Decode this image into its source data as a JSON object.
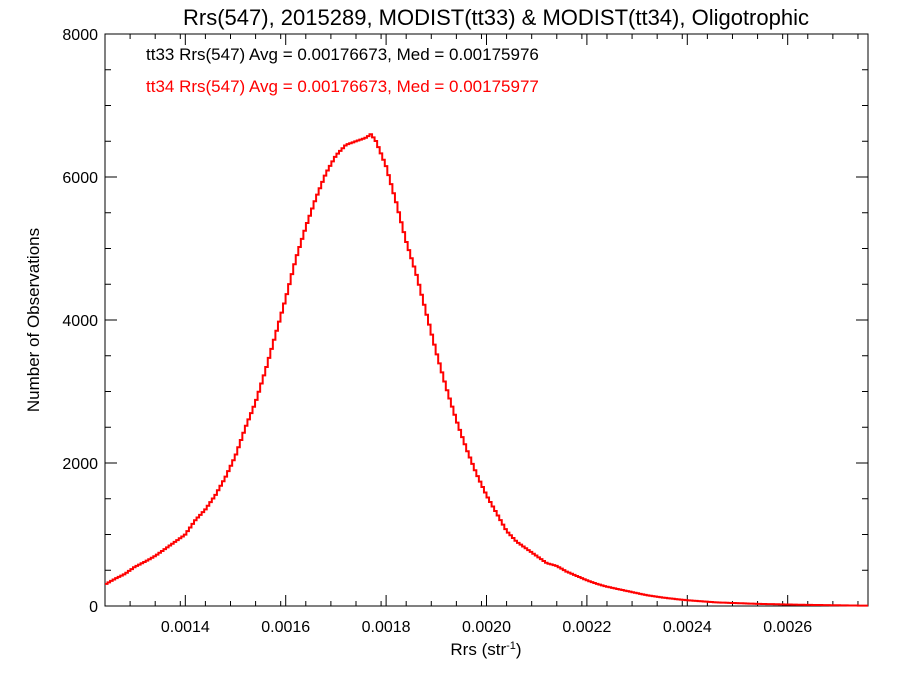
{
  "chart_data": {
    "type": "line",
    "title": "Rrs(547), 2015289, MODIST(tt33) & MODIST(tt34), Oligotrophic",
    "xlabel": "Rrs (str",
    "xlabel_sup": "-1",
    "xlabel_close": ")",
    "ylabel": "Number of Observations",
    "xlim": [
      0.00124,
      0.00276
    ],
    "ylim": [
      0,
      8000
    ],
    "xticks": [
      0.0014,
      0.0016,
      0.0018,
      0.002,
      0.0022,
      0.0024,
      0.0026
    ],
    "xtick_labels": [
      "0.0014",
      "0.0016",
      "0.0018",
      "0.0020",
      "0.0022",
      "0.0024",
      "0.0026"
    ],
    "yticks": [
      0,
      2000,
      4000,
      6000,
      8000
    ],
    "ytick_labels": [
      "0",
      "2000",
      "4000",
      "6000",
      "8000"
    ],
    "x_minor_step": 5e-05,
    "y_minor_step": 500,
    "grid": false,
    "annotations": [
      {
        "text": "tt33 Rrs(547) Avg = 0.00176673, Med = 0.00175976",
        "color": "#000000"
      },
      {
        "text": "tt34 Rrs(547) Avg = 0.00176673, Med = 0.00175977",
        "color": "#ff0000"
      }
    ],
    "series": [
      {
        "color": "#ff0000",
        "step": true,
        "x": [
          0.00124,
          0.00126,
          0.00128,
          0.0013,
          0.00132,
          0.00134,
          0.00136,
          0.00138,
          0.0014,
          0.00142,
          0.00144,
          0.00146,
          0.00148,
          0.0015,
          0.00152,
          0.00154,
          0.00156,
          0.00158,
          0.0016,
          0.00162,
          0.00164,
          0.00166,
          0.00168,
          0.0017,
          0.00172,
          0.00174,
          0.00176,
          0.00177,
          0.00178,
          0.0018,
          0.00182,
          0.00184,
          0.00186,
          0.00188,
          0.0019,
          0.00192,
          0.00194,
          0.00196,
          0.00198,
          0.002,
          0.00202,
          0.00204,
          0.00206,
          0.00208,
          0.0021,
          0.00212,
          0.00214,
          0.00216,
          0.00218,
          0.0022,
          0.00222,
          0.00224,
          0.00226,
          0.00228,
          0.0023,
          0.00232,
          0.00234,
          0.00236,
          0.00238,
          0.0024,
          0.00242,
          0.00244,
          0.00246,
          0.00248,
          0.0025,
          0.00252,
          0.00254,
          0.00256,
          0.00258,
          0.0026,
          0.00262,
          0.00264,
          0.00266,
          0.00268,
          0.0027,
          0.00272,
          0.00274,
          0.00276
        ],
        "y": [
          300,
          380,
          450,
          550,
          620,
          700,
          800,
          900,
          1000,
          1200,
          1350,
          1550,
          1800,
          2100,
          2500,
          2850,
          3300,
          3800,
          4300,
          4850,
          5300,
          5700,
          6050,
          6300,
          6450,
          6500,
          6550,
          6600,
          6500,
          6150,
          5650,
          5100,
          4650,
          4100,
          3550,
          3050,
          2600,
          2200,
          1850,
          1550,
          1300,
          1050,
          900,
          800,
          700,
          600,
          560,
          480,
          420,
          360,
          310,
          270,
          240,
          210,
          180,
          150,
          130,
          110,
          95,
          80,
          70,
          60,
          50,
          45,
          40,
          35,
          30,
          27,
          24,
          21,
          18,
          16,
          14,
          12,
          10,
          8,
          6,
          5
        ]
      }
    ]
  }
}
